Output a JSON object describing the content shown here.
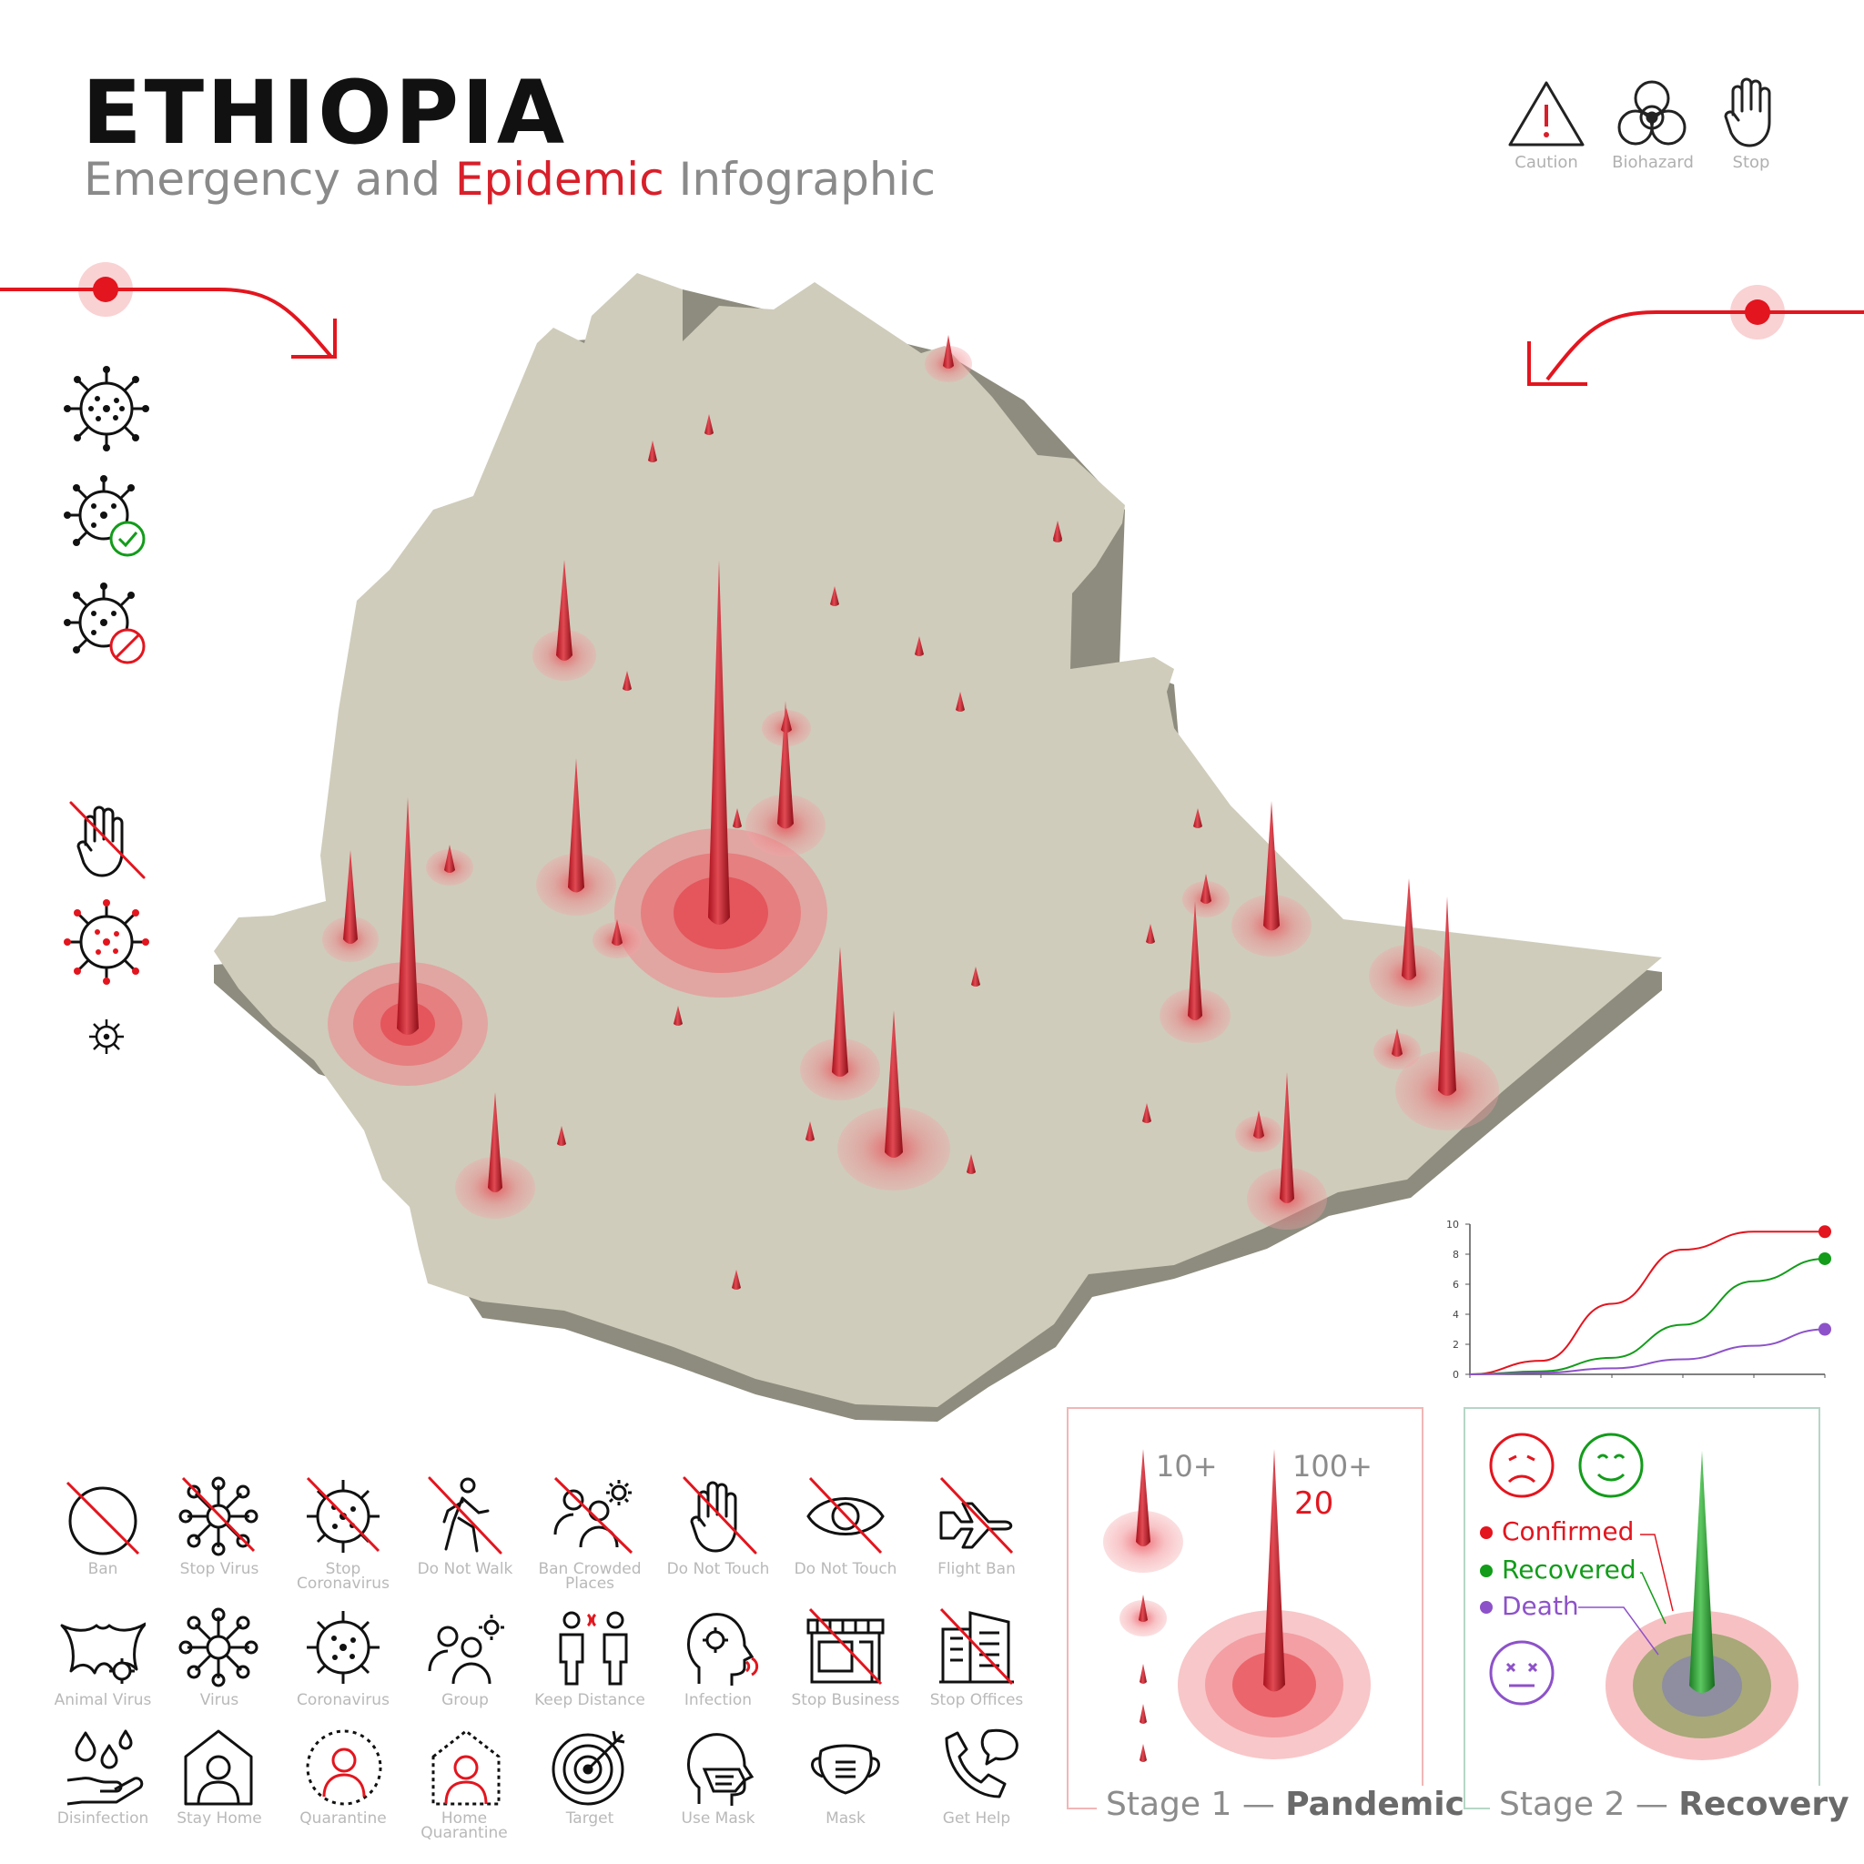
{
  "header": {
    "title": "ETHIOPIA",
    "subtitle_pre": "Emergency and ",
    "subtitle_accent": "Epidemic",
    "subtitle_post": " Infographic"
  },
  "top_icons": [
    {
      "label": "Caution",
      "icon": "warning-triangle-icon"
    },
    {
      "label": "Biohazard",
      "icon": "biohazard-icon"
    },
    {
      "label": "Stop",
      "icon": "stop-hand-icon"
    }
  ],
  "left_icons": [
    {
      "icon": "virus-icon"
    },
    {
      "icon": "virus-checked-icon"
    },
    {
      "icon": "virus-banned-icon"
    },
    {
      "icon": "no-hand-icon"
    },
    {
      "icon": "virus-red-icon"
    },
    {
      "icon": "small-virus-icon"
    }
  ],
  "map": {
    "country": "Ethiopia",
    "fill_color": "#cfccbb",
    "side_color": "#8e8c7e",
    "spike_color": "#c4232e"
  },
  "icon_grid": {
    "row1": [
      "Ban",
      "Stop Virus",
      "Stop Coronavirus",
      "Do Not Walk",
      "Ban Crowded Places",
      "Do Not Touch",
      "Do Not Touch",
      "Flight Ban"
    ],
    "row2": [
      "Animal Virus",
      "Virus",
      "Coronavirus",
      "Group",
      "Keep Distance",
      "Infection",
      "Stop Business",
      "Stop Offices"
    ],
    "row3": [
      "Disinfection",
      "Stay Home",
      "Quarantine",
      "Home Quarantine",
      "Target",
      "Use Mask",
      "Mask",
      "Get Help"
    ]
  },
  "stage1": {
    "label_plain": "Stage 1 — ",
    "label_bold": "Pandemic",
    "small_value": "10+",
    "big_value": "100+",
    "count": "20",
    "border_color": "#f2b6b6"
  },
  "stage2": {
    "label_plain": "Stage 2 — ",
    "label_bold": "Recovery",
    "border_color": "#b6d6c6",
    "legend": [
      {
        "name": "Confirmed",
        "color": "#e3151e"
      },
      {
        "name": "Recovered",
        "color": "#129c1a"
      },
      {
        "name": "Death",
        "color": "#8d52c9"
      }
    ]
  },
  "chart_data": {
    "type": "line",
    "x": [
      0,
      1,
      2,
      3,
      4,
      5
    ],
    "ylim": [
      0,
      10
    ],
    "yticks": [
      "0",
      "2",
      "4",
      "6",
      "8",
      "10"
    ],
    "series": [
      {
        "name": "Confirmed",
        "color": "#e3151e",
        "values": [
          0,
          0.9,
          4.7,
          8.3,
          9.5,
          9.5
        ]
      },
      {
        "name": "Recovered",
        "color": "#129c1a",
        "values": [
          0,
          0.2,
          1.1,
          3.3,
          6.2,
          7.7
        ]
      },
      {
        "name": "Death",
        "color": "#8d52c9",
        "values": [
          0,
          0.1,
          0.4,
          1.0,
          1.9,
          3.0
        ]
      }
    ]
  }
}
